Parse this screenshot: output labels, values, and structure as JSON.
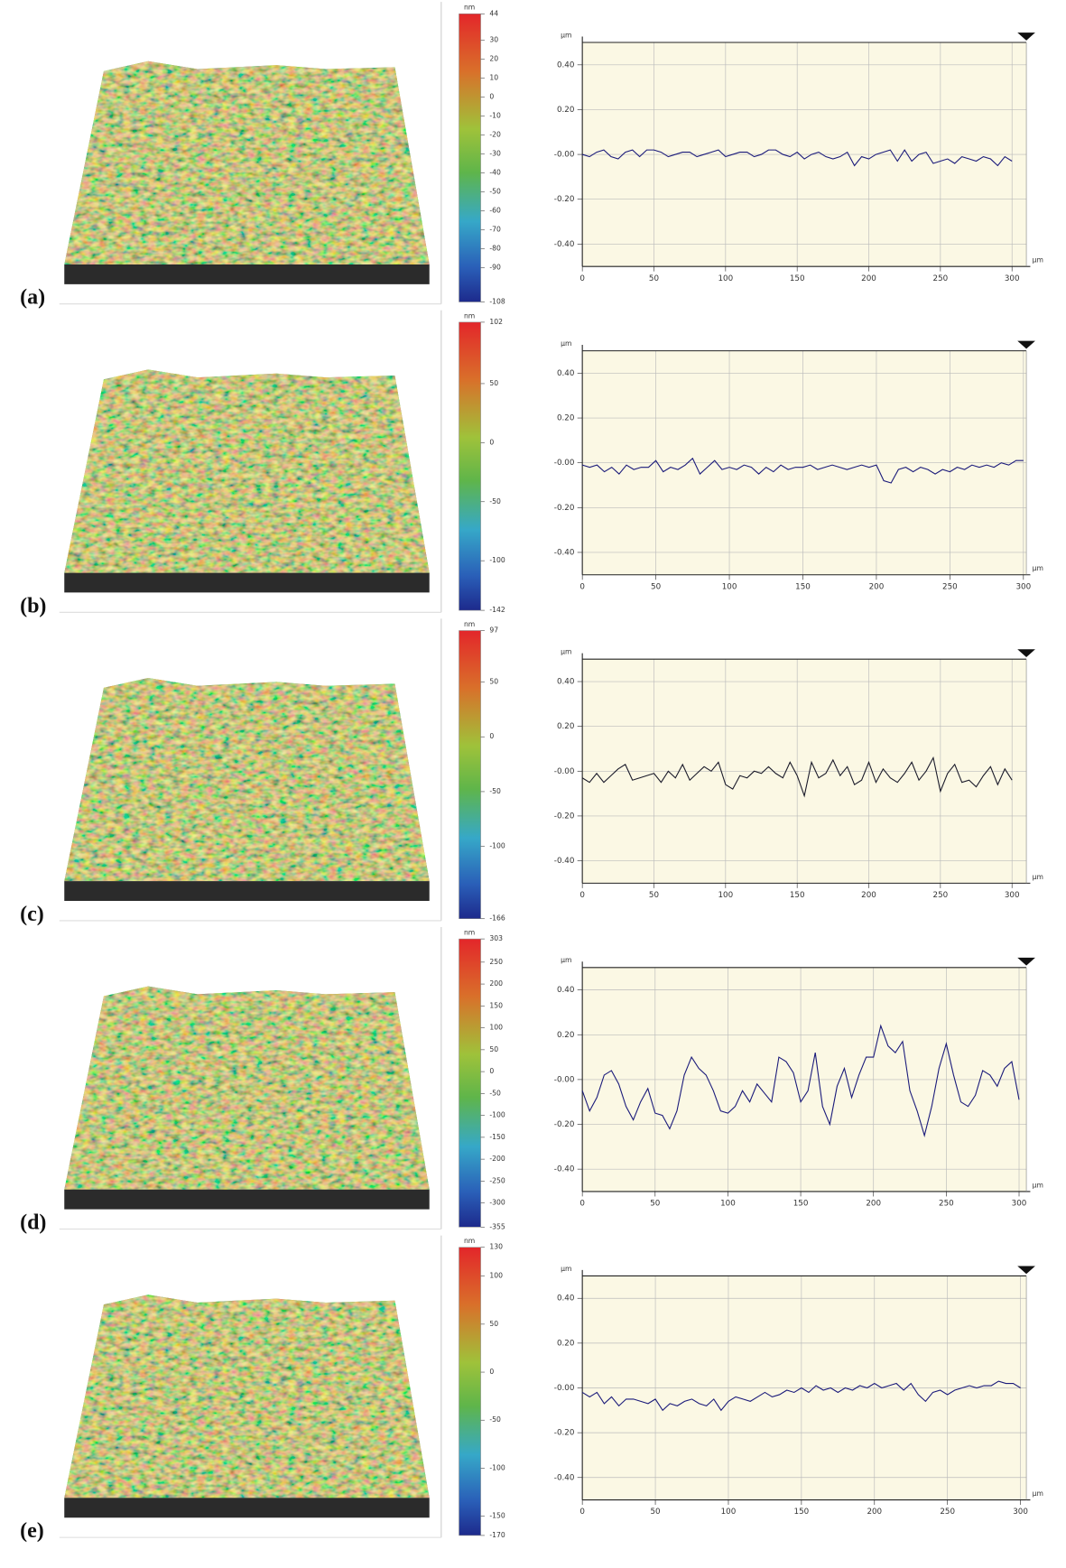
{
  "chart_data": [
    {
      "type": "line",
      "label": "(a)",
      "colorbar": {
        "unit": "nm",
        "ticks": [
          44,
          30,
          20,
          10,
          0,
          -10,
          -20,
          -30,
          -40,
          -50,
          -60,
          -70,
          -80,
          -90,
          -108
        ]
      },
      "y_unit": "µm",
      "x_unit": "µm",
      "x": [
        0,
        5,
        10,
        15,
        20,
        25,
        30,
        35,
        40,
        45,
        50,
        55,
        60,
        65,
        70,
        75,
        80,
        85,
        90,
        95,
        100,
        105,
        110,
        115,
        120,
        125,
        130,
        135,
        140,
        145,
        150,
        155,
        160,
        165,
        170,
        175,
        180,
        185,
        190,
        195,
        200,
        205,
        210,
        215,
        220,
        225,
        230,
        235,
        240,
        245,
        250,
        255,
        260,
        265,
        270,
        275,
        280,
        285,
        290,
        295,
        300
      ],
      "values": [
        0,
        -0.01,
        0.01,
        0.02,
        -0.01,
        -0.02,
        0.01,
        0.02,
        -0.01,
        0.02,
        0.02,
        0.01,
        -0.01,
        0,
        0.01,
        0.01,
        -0.01,
        0,
        0.01,
        0.02,
        -0.01,
        0,
        0.01,
        0.01,
        -0.01,
        0,
        0.02,
        0.02,
        0,
        -0.01,
        0.01,
        -0.02,
        0,
        0.01,
        -0.01,
        -0.02,
        -0.01,
        0.01,
        -0.05,
        -0.01,
        -0.02,
        0,
        0.01,
        0.02,
        -0.03,
        0.02,
        -0.03,
        0,
        0.01,
        -0.04,
        -0.03,
        -0.02,
        -0.04,
        -0.01,
        -0.02,
        -0.03,
        -0.01,
        -0.02,
        -0.05,
        -0.01,
        -0.03
      ],
      "color": "#1a1a7a",
      "xlim": [
        0,
        310
      ],
      "ylim": [
        -0.5,
        0.5
      ],
      "xticks": [
        0,
        50,
        100,
        150,
        200,
        250,
        300
      ],
      "yticks": [
        {
          "value": 0.4,
          "label": "0.40"
        },
        {
          "value": 0.2,
          "label": "0.20"
        },
        {
          "value": 0,
          "label": "-0.00"
        },
        {
          "value": -0.2,
          "label": "-0.20"
        },
        {
          "value": -0.4,
          "label": "-0.40"
        }
      ],
      "grid": true
    },
    {
      "type": "line",
      "label": "(b)",
      "colorbar": {
        "unit": "nm",
        "ticks": [
          102,
          50,
          0,
          -50,
          -100,
          -142
        ]
      },
      "y_unit": "µm",
      "x_unit": "µm",
      "x": [
        0,
        5,
        10,
        15,
        20,
        25,
        30,
        35,
        40,
        45,
        50,
        55,
        60,
        65,
        70,
        75,
        80,
        85,
        90,
        95,
        100,
        105,
        110,
        115,
        120,
        125,
        130,
        135,
        140,
        145,
        150,
        155,
        160,
        165,
        170,
        175,
        180,
        185,
        190,
        195,
        200,
        205,
        210,
        215,
        220,
        225,
        230,
        235,
        240,
        245,
        250,
        255,
        260,
        265,
        270,
        275,
        280,
        285,
        290,
        295,
        300
      ],
      "values": [
        -0.01,
        -0.02,
        -0.01,
        -0.04,
        -0.02,
        -0.05,
        -0.01,
        -0.03,
        -0.02,
        -0.02,
        0.01,
        -0.04,
        -0.02,
        -0.03,
        -0.01,
        0.02,
        -0.05,
        -0.02,
        0.01,
        -0.03,
        -0.02,
        -0.03,
        -0.01,
        -0.02,
        -0.05,
        -0.02,
        -0.04,
        -0.01,
        -0.03,
        -0.02,
        -0.02,
        -0.01,
        -0.03,
        -0.02,
        -0.01,
        -0.02,
        -0.03,
        -0.02,
        -0.01,
        -0.02,
        -0.01,
        -0.08,
        -0.09,
        -0.03,
        -0.02,
        -0.04,
        -0.02,
        -0.03,
        -0.05,
        -0.03,
        -0.04,
        -0.02,
        -0.03,
        -0.01,
        -0.02,
        -0.01,
        -0.02,
        0,
        -0.01,
        0.01,
        0.01
      ],
      "color": "#1a1a7a",
      "xlim": [
        0,
        302
      ],
      "ylim": [
        -0.5,
        0.5
      ],
      "xticks": [
        0,
        50,
        100,
        150,
        200,
        250,
        300
      ],
      "yticks": [
        {
          "value": 0.4,
          "label": "0.40"
        },
        {
          "value": 0.2,
          "label": "0.20"
        },
        {
          "value": 0,
          "label": "-0.00"
        },
        {
          "value": -0.2,
          "label": "-0.20"
        },
        {
          "value": -0.4,
          "label": "-0.40"
        }
      ],
      "grid": true
    },
    {
      "type": "line",
      "label": "(c)",
      "colorbar": {
        "unit": "nm",
        "ticks": [
          97,
          50,
          0,
          -50,
          -100,
          -166
        ]
      },
      "y_unit": "µm",
      "x_unit": "µm",
      "x": [
        0,
        5,
        10,
        15,
        20,
        25,
        30,
        35,
        40,
        45,
        50,
        55,
        60,
        65,
        70,
        75,
        80,
        85,
        90,
        95,
        100,
        105,
        110,
        115,
        120,
        125,
        130,
        135,
        140,
        145,
        150,
        155,
        160,
        165,
        170,
        175,
        180,
        185,
        190,
        195,
        200,
        205,
        210,
        215,
        220,
        225,
        230,
        235,
        240,
        245,
        250,
        255,
        260,
        265,
        270,
        275,
        280,
        285,
        290,
        295,
        300
      ],
      "values": [
        -0.03,
        -0.05,
        -0.01,
        -0.05,
        -0.02,
        0.01,
        0.03,
        -0.04,
        -0.03,
        -0.02,
        -0.01,
        -0.05,
        0,
        -0.03,
        0.03,
        -0.04,
        -0.01,
        0.02,
        0,
        0.04,
        -0.06,
        -0.08,
        -0.02,
        -0.03,
        0,
        -0.01,
        0.02,
        -0.01,
        -0.03,
        0.04,
        -0.02,
        -0.11,
        0.04,
        -0.03,
        -0.01,
        0.05,
        -0.02,
        0.02,
        -0.06,
        -0.04,
        0.04,
        -0.05,
        0.01,
        -0.03,
        -0.05,
        -0.01,
        0.04,
        -0.04,
        0,
        0.06,
        -0.09,
        -0.01,
        0.03,
        -0.05,
        -0.04,
        -0.07,
        -0.02,
        0.02,
        -0.06,
        0.01,
        -0.04
      ],
      "color": "#1a1a2a",
      "xlim": [
        0,
        310
      ],
      "ylim": [
        -0.5,
        0.5
      ],
      "xticks": [
        0,
        50,
        100,
        150,
        200,
        250,
        300
      ],
      "yticks": [
        {
          "value": 0.4,
          "label": "0.40"
        },
        {
          "value": 0.2,
          "label": "0.20"
        },
        {
          "value": 0,
          "label": "-0.00"
        },
        {
          "value": -0.2,
          "label": "-0.20"
        },
        {
          "value": -0.4,
          "label": "-0.40"
        }
      ],
      "grid": true
    },
    {
      "type": "line",
      "label": "(d)",
      "colorbar": {
        "unit": "nm",
        "ticks": [
          303,
          250,
          200,
          150,
          100,
          50,
          0,
          -50,
          -100,
          -150,
          -200,
          -250,
          -300,
          -355
        ]
      },
      "y_unit": "µm",
      "x_unit": "µm",
      "x": [
        0,
        5,
        10,
        15,
        20,
        25,
        30,
        35,
        40,
        45,
        50,
        55,
        60,
        65,
        70,
        75,
        80,
        85,
        90,
        95,
        100,
        105,
        110,
        115,
        120,
        125,
        130,
        135,
        140,
        145,
        150,
        155,
        160,
        165,
        170,
        175,
        180,
        185,
        190,
        195,
        200,
        205,
        210,
        215,
        220,
        225,
        230,
        235,
        240,
        245,
        250,
        255,
        260,
        265,
        270,
        275,
        280,
        285,
        290,
        295,
        300
      ],
      "values": [
        -0.05,
        -0.14,
        -0.08,
        0.02,
        0.04,
        -0.02,
        -0.12,
        -0.18,
        -0.1,
        -0.04,
        -0.15,
        -0.16,
        -0.22,
        -0.14,
        0.02,
        0.1,
        0.05,
        0.02,
        -0.05,
        -0.14,
        -0.15,
        -0.12,
        -0.05,
        -0.1,
        -0.02,
        -0.06,
        -0.1,
        0.1,
        0.08,
        0.03,
        -0.1,
        -0.05,
        0.12,
        -0.12,
        -0.2,
        -0.03,
        0.05,
        -0.08,
        0.02,
        0.1,
        0.1,
        0.24,
        0.15,
        0.12,
        0.17,
        -0.05,
        -0.14,
        -0.25,
        -0.12,
        0.05,
        0.16,
        0.02,
        -0.1,
        -0.12,
        -0.07,
        0.04,
        0.02,
        -0.03,
        0.05,
        0.08,
        -0.09
      ],
      "color": "#1a1a7a",
      "xlim": [
        0,
        305
      ],
      "ylim": [
        -0.5,
        0.5
      ],
      "xticks": [
        0,
        50,
        100,
        150,
        200,
        250,
        300
      ],
      "yticks": [
        {
          "value": 0.4,
          "label": "0.40"
        },
        {
          "value": 0.2,
          "label": "0.20"
        },
        {
          "value": 0,
          "label": "-0.00"
        },
        {
          "value": -0.2,
          "label": "-0.20"
        },
        {
          "value": -0.4,
          "label": "-0.40"
        }
      ],
      "grid": true
    },
    {
      "type": "line",
      "label": "(e)",
      "colorbar": {
        "unit": "nm",
        "ticks": [
          130,
          100,
          50,
          0,
          -50,
          -100,
          -150,
          -170
        ]
      },
      "y_unit": "µm",
      "x_unit": "µm",
      "x": [
        0,
        5,
        10,
        15,
        20,
        25,
        30,
        35,
        40,
        45,
        50,
        55,
        60,
        65,
        70,
        75,
        80,
        85,
        90,
        95,
        100,
        105,
        110,
        115,
        120,
        125,
        130,
        135,
        140,
        145,
        150,
        155,
        160,
        165,
        170,
        175,
        180,
        185,
        190,
        195,
        200,
        205,
        210,
        215,
        220,
        225,
        230,
        235,
        240,
        245,
        250,
        255,
        260,
        265,
        270,
        275,
        280,
        285,
        290,
        295,
        300
      ],
      "values": [
        -0.02,
        -0.04,
        -0.02,
        -0.07,
        -0.04,
        -0.08,
        -0.05,
        -0.05,
        -0.06,
        -0.07,
        -0.05,
        -0.1,
        -0.07,
        -0.08,
        -0.06,
        -0.05,
        -0.07,
        -0.08,
        -0.05,
        -0.1,
        -0.06,
        -0.04,
        -0.05,
        -0.06,
        -0.04,
        -0.02,
        -0.04,
        -0.03,
        -0.01,
        -0.02,
        0,
        -0.02,
        0.01,
        -0.01,
        0,
        -0.02,
        0,
        -0.01,
        0.01,
        0,
        0.02,
        0,
        0.01,
        0.02,
        -0.01,
        0.02,
        -0.03,
        -0.06,
        -0.02,
        -0.01,
        -0.03,
        -0.01,
        0,
        0.01,
        0,
        0.01,
        0.01,
        0.03,
        0.02,
        0.02,
        0
      ],
      "color": "#1a1a7a",
      "xlim": [
        0,
        304
      ],
      "ylim": [
        -0.5,
        0.5
      ],
      "xticks": [
        0,
        50,
        100,
        150,
        200,
        250,
        300
      ],
      "yticks": [
        {
          "value": 0.4,
          "label": "0.40"
        },
        {
          "value": 0.2,
          "label": "0.20"
        },
        {
          "value": 0,
          "label": "-0.00"
        },
        {
          "value": -0.2,
          "label": "-0.20"
        },
        {
          "value": -0.4,
          "label": "-0.40"
        }
      ],
      "grid": true
    }
  ]
}
